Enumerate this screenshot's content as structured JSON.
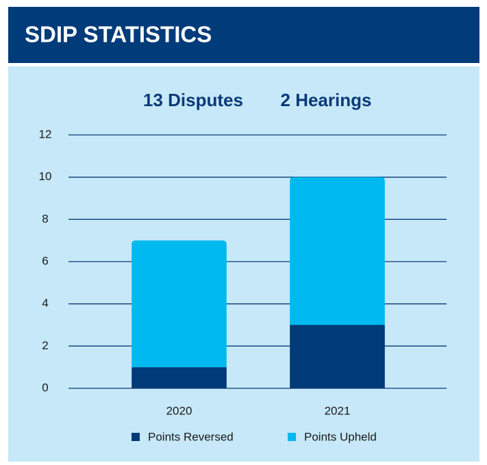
{
  "chart_data": {
    "type": "stacked_bar",
    "title": "SDIP STATISTICS",
    "subtitles": [
      "13 Disputes",
      "2 Hearings"
    ],
    "categories": [
      "2020",
      "2021"
    ],
    "series": [
      {
        "name": "Points Reversed",
        "color": "#003a78",
        "values": [
          1,
          3
        ]
      },
      {
        "name": "Points Upheld",
        "color": "#00b9f0",
        "values": [
          6,
          7
        ]
      }
    ],
    "ylim": [
      0,
      12
    ],
    "yticks": [
      0,
      2,
      4,
      6,
      8,
      10,
      12
    ],
    "grid": true,
    "legend": "bottom"
  }
}
